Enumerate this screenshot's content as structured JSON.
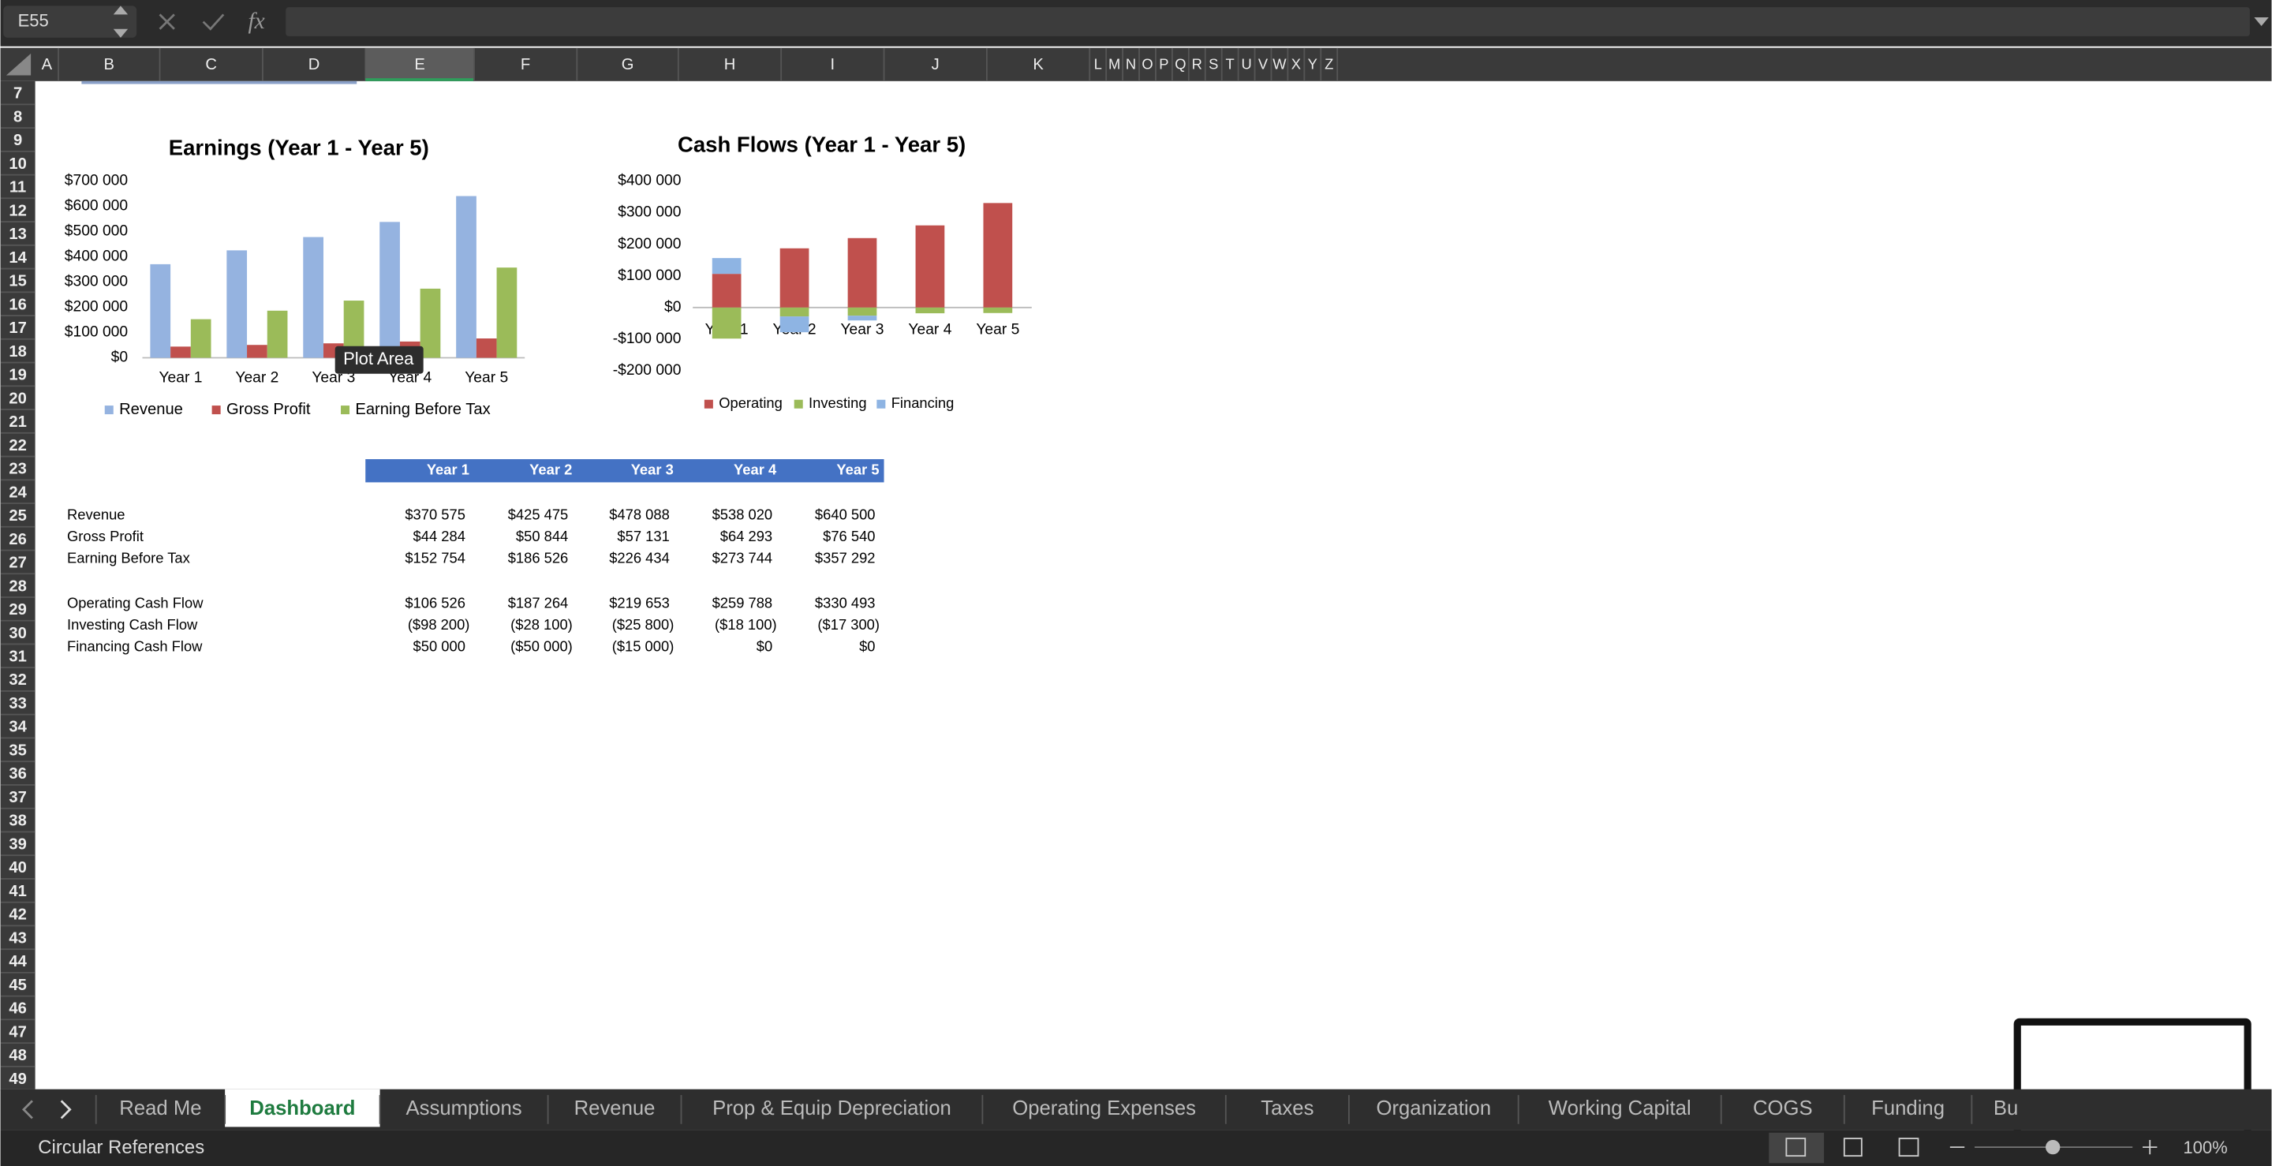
{
  "ui": {
    "name_box": "E55",
    "fx": "fx",
    "columns": [
      "A",
      "B",
      "C",
      "D",
      "E",
      "F",
      "G",
      "H",
      "I",
      "J",
      "K",
      "L",
      "M",
      "N",
      "O",
      "P",
      "Q",
      "R",
      "S",
      "T",
      "U",
      "V",
      "W",
      "X",
      "Y",
      "Z"
    ],
    "rows": [
      "7",
      "8",
      "9",
      "10",
      "11",
      "12",
      "13",
      "14",
      "15",
      "16",
      "17",
      "18",
      "19",
      "20",
      "21",
      "22",
      "23",
      "24",
      "25",
      "26",
      "27",
      "28",
      "29",
      "30",
      "31",
      "32",
      "33",
      "34",
      "35",
      "36",
      "37",
      "38",
      "39",
      "40",
      "41",
      "42",
      "43",
      "44",
      "45",
      "46",
      "47",
      "48",
      "49"
    ],
    "tooltip": "Plot Area",
    "tabs": [
      "Read Me",
      "Dashboard",
      "Assumptions",
      "Revenue",
      "Prop & Equip Depreciation",
      "Operating Expenses",
      "Taxes",
      "Organization",
      "Working Capital",
      "COGS",
      "Funding",
      "Bu"
    ],
    "active_tab": 1,
    "status": "Circular References",
    "zoom": "100%"
  },
  "chart_data": [
    {
      "type": "bar",
      "title": "Earnings (Year 1 - Year 5)",
      "categories": [
        "Year 1",
        "Year 2",
        "Year 3",
        "Year 4",
        "Year 5"
      ],
      "series": [
        {
          "name": "Revenue",
          "color": "#95b3e0",
          "values": [
            370575,
            425475,
            478088,
            538020,
            640500
          ]
        },
        {
          "name": "Gross Profit",
          "color": "#c0504d",
          "values": [
            44284,
            50844,
            57131,
            64293,
            76540
          ]
        },
        {
          "name": "Earning Before Tax",
          "color": "#9bbb59",
          "values": [
            152754,
            186526,
            226434,
            273744,
            357292
          ]
        }
      ],
      "ylim": [
        0,
        700000
      ],
      "yticks": [
        {
          "value": 0,
          "label": "$0"
        },
        {
          "value": 100000,
          "label": "$100 000"
        },
        {
          "value": 200000,
          "label": "$200 000"
        },
        {
          "value": 300000,
          "label": "$300 000"
        },
        {
          "value": 400000,
          "label": "$400 000"
        },
        {
          "value": 500000,
          "label": "$500 000"
        },
        {
          "value": 600000,
          "label": "$600 000"
        },
        {
          "value": 700000,
          "label": "$700 000"
        }
      ],
      "grid": false,
      "legend": "bottom"
    },
    {
      "type": "stacked_bar",
      "title": "Cash Flows (Year 1 - Year 5)",
      "categories": [
        "Year 1",
        "Year 2",
        "Year 3",
        "Year 4",
        "Year 5"
      ],
      "series": [
        {
          "name": "Operating",
          "color": "#c0504d",
          "values": [
            106526,
            187264,
            219653,
            259788,
            330493
          ]
        },
        {
          "name": "Investing",
          "color": "#9bbb59",
          "values": [
            -98200,
            -28100,
            -25800,
            -18100,
            -17300
          ]
        },
        {
          "name": "Financing",
          "color": "#8eb4e3",
          "values": [
            50000,
            -50000,
            -15000,
            0,
            0
          ]
        }
      ],
      "ylim": [
        -200000,
        400000
      ],
      "yticks": [
        {
          "value": -200000,
          "label": "-$200 000"
        },
        {
          "value": -100000,
          "label": "-$100 000"
        },
        {
          "value": 0,
          "label": "$0"
        },
        {
          "value": 100000,
          "label": "$100 000"
        },
        {
          "value": 200000,
          "label": "$200 000"
        },
        {
          "value": 300000,
          "label": "$300 000"
        },
        {
          "value": 400000,
          "label": "$400 000"
        }
      ],
      "grid": false,
      "legend": "bottom"
    }
  ],
  "table": {
    "header": [
      "Year 1",
      "Year 2",
      "Year 3",
      "Year 4",
      "Year 5"
    ],
    "rows": [
      [
        "Revenue",
        "$370 575",
        "$425 475",
        "$478 088",
        "$538 020",
        "$640 500"
      ],
      [
        "Gross Profit",
        "$44 284",
        "$50 844",
        "$57 131",
        "$64 293",
        "$76 540"
      ],
      [
        "Earning Before Tax",
        "$152 754",
        "$186 526",
        "$226 434",
        "$273 744",
        "$357 292"
      ],
      [
        "Operating Cash Flow",
        "$106 526",
        "$187 264",
        "$219 653",
        "$259 788",
        "$330 493"
      ],
      [
        "Investing Cash Flow",
        "($98 200)",
        "($28 100)",
        "($25 800)",
        "($18 100)",
        "($17 300)"
      ],
      [
        "Financing Cash Flow",
        "$50 000",
        "($50 000)",
        "($15 000)",
        "$0",
        "$0"
      ]
    ]
  }
}
